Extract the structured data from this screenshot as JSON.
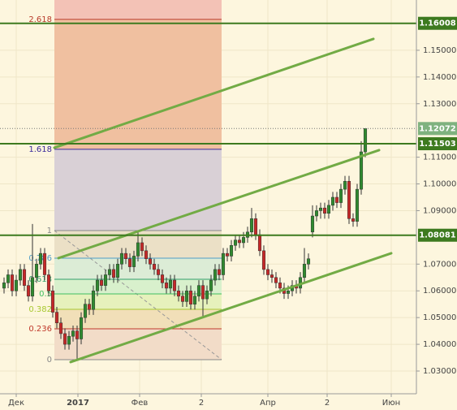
{
  "chart_data": {
    "type": "candlestick",
    "xlim": [
      0,
      102.6
    ],
    "ylim": [
      1.0215,
      1.1688
    ],
    "xticks": [
      {
        "value": 4,
        "label": "Дек"
      },
      {
        "value": 19.2,
        "label": "2017",
        "bold": true
      },
      {
        "value": 34.4,
        "label": "Фев"
      },
      {
        "value": 49.6,
        "label": "2"
      },
      {
        "value": 66,
        "label": "Апр"
      },
      {
        "value": 80.6,
        "label": "2"
      },
      {
        "value": 96.4,
        "label": "Июн"
      }
    ],
    "yticks": [
      {
        "value": 1.15,
        "label": "1.15000"
      },
      {
        "value": 1.14,
        "label": "1.14000"
      },
      {
        "value": 1.13,
        "label": "1.13000"
      },
      {
        "value": 1.11,
        "label": "1.11000"
      },
      {
        "value": 1.1,
        "label": "1.10000"
      },
      {
        "value": 1.09,
        "label": "1.09000"
      },
      {
        "value": 1.07,
        "label": "1.07000"
      },
      {
        "value": 1.06,
        "label": "1.06000"
      },
      {
        "value": 1.05,
        "label": "1.05000"
      },
      {
        "value": 1.04,
        "label": "1.04000"
      },
      {
        "value": 1.03,
        "label": "1.03000"
      }
    ],
    "grid": true,
    "up_color": "#2f8a2f",
    "down_color": "#c62828",
    "x": [
      1,
      2,
      3,
      4,
      5,
      6,
      7,
      8,
      9,
      10,
      11,
      12,
      13,
      14,
      15,
      16,
      17,
      18,
      19,
      20,
      21,
      22,
      23,
      24,
      25,
      26,
      27,
      28,
      29,
      30,
      31,
      32,
      33,
      34,
      35,
      36,
      37,
      38,
      39,
      40,
      41,
      42,
      43,
      44,
      45,
      46,
      47,
      48,
      49,
      50,
      51,
      52,
      53,
      54,
      55,
      56,
      57,
      58,
      59,
      60,
      61,
      62,
      63,
      64,
      65,
      66,
      67,
      68,
      69,
      70,
      71,
      72,
      73,
      74,
      75,
      76,
      77,
      78,
      79,
      80,
      81,
      82,
      83,
      84,
      85,
      86,
      87,
      88,
      89,
      90
    ],
    "ohlc": [
      [
        1.061,
        1.065,
        1.059,
        1.063
      ],
      [
        1.063,
        1.068,
        1.061,
        1.066
      ],
      [
        1.066,
        1.068,
        1.058,
        1.06
      ],
      [
        1.06,
        1.066,
        1.058,
        1.064
      ],
      [
        1.064,
        1.07,
        1.062,
        1.068
      ],
      [
        1.068,
        1.07,
        1.06,
        1.062
      ],
      [
        1.062,
        1.064,
        1.056,
        1.058
      ],
      [
        1.058,
        1.085,
        1.056,
        1.065
      ],
      [
        1.065,
        1.072,
        1.063,
        1.07
      ],
      [
        1.07,
        1.076,
        1.068,
        1.074
      ],
      [
        1.074,
        1.076,
        1.064,
        1.066
      ],
      [
        1.066,
        1.068,
        1.058,
        1.06
      ],
      [
        1.06,
        1.062,
        1.05,
        1.052
      ],
      [
        1.052,
        1.054,
        1.046,
        1.048
      ],
      [
        1.048,
        1.05,
        1.042,
        1.044
      ],
      [
        1.044,
        1.046,
        1.038,
        1.04
      ],
      [
        1.04,
        1.045,
        1.038,
        1.043
      ],
      [
        1.043,
        1.047,
        1.041,
        1.045
      ],
      [
        1.045,
        1.047,
        1.034,
        1.042
      ],
      [
        1.042,
        1.052,
        1.04,
        1.05
      ],
      [
        1.05,
        1.057,
        1.048,
        1.055
      ],
      [
        1.055,
        1.057,
        1.051,
        1.053
      ],
      [
        1.053,
        1.062,
        1.051,
        1.06
      ],
      [
        1.06,
        1.066,
        1.058,
        1.064
      ],
      [
        1.064,
        1.066,
        1.06,
        1.062
      ],
      [
        1.062,
        1.068,
        1.06,
        1.066
      ],
      [
        1.066,
        1.07,
        1.064,
        1.068
      ],
      [
        1.068,
        1.07,
        1.063,
        1.065
      ],
      [
        1.065,
        1.072,
        1.063,
        1.07
      ],
      [
        1.07,
        1.076,
        1.068,
        1.074
      ],
      [
        1.074,
        1.076,
        1.07,
        1.072
      ],
      [
        1.072,
        1.074,
        1.067,
        1.069
      ],
      [
        1.069,
        1.075,
        1.067,
        1.073
      ],
      [
        1.073,
        1.082,
        1.071,
        1.078
      ],
      [
        1.078,
        1.08,
        1.073,
        1.075
      ],
      [
        1.075,
        1.077,
        1.07,
        1.072
      ],
      [
        1.072,
        1.074,
        1.068,
        1.07
      ],
      [
        1.07,
        1.072,
        1.066,
        1.068
      ],
      [
        1.068,
        1.07,
        1.064,
        1.066
      ],
      [
        1.066,
        1.068,
        1.061,
        1.063
      ],
      [
        1.063,
        1.065,
        1.059,
        1.061
      ],
      [
        1.061,
        1.066,
        1.059,
        1.064
      ],
      [
        1.064,
        1.066,
        1.058,
        1.06
      ],
      [
        1.06,
        1.062,
        1.056,
        1.058
      ],
      [
        1.058,
        1.06,
        1.054,
        1.056
      ],
      [
        1.056,
        1.062,
        1.054,
        1.06
      ],
      [
        1.06,
        1.062,
        1.053,
        1.055
      ],
      [
        1.055,
        1.06,
        1.053,
        1.058
      ],
      [
        1.058,
        1.064,
        1.056,
        1.062
      ],
      [
        1.062,
        1.064,
        1.05,
        1.057
      ],
      [
        1.057,
        1.062,
        1.055,
        1.06
      ],
      [
        1.06,
        1.066,
        1.058,
        1.064
      ],
      [
        1.064,
        1.07,
        1.062,
        1.068
      ],
      [
        1.068,
        1.07,
        1.064,
        1.066
      ],
      [
        1.066,
        1.076,
        1.064,
        1.074
      ],
      [
        1.074,
        1.076,
        1.071,
        1.073
      ],
      [
        1.073,
        1.079,
        1.071,
        1.077
      ],
      [
        1.077,
        1.081,
        1.075,
        1.079
      ],
      [
        1.079,
        1.081,
        1.076,
        1.078
      ],
      [
        1.078,
        1.082,
        1.076,
        1.08
      ],
      [
        1.08,
        1.084,
        1.078,
        1.082
      ],
      [
        1.082,
        1.091,
        1.08,
        1.087
      ],
      [
        1.087,
        1.089,
        1.079,
        1.081
      ],
      [
        1.081,
        1.083,
        1.073,
        1.075
      ],
      [
        1.075,
        1.077,
        1.066,
        1.068
      ],
      [
        1.068,
        1.07,
        1.064,
        1.066
      ],
      [
        1.066,
        1.068,
        1.063,
        1.065
      ],
      [
        1.065,
        1.067,
        1.061,
        1.063
      ],
      [
        1.063,
        1.065,
        1.059,
        1.061
      ],
      [
        1.061,
        1.063,
        1.057,
        1.059
      ],
      [
        1.059,
        1.062,
        1.057,
        1.06
      ],
      [
        1.06,
        1.064,
        1.058,
        1.062
      ],
      [
        1.062,
        1.064,
        1.059,
        1.061
      ],
      [
        1.061,
        1.067,
        1.059,
        1.065
      ],
      [
        1.065,
        1.076,
        1.063,
        1.07
      ],
      [
        1.07,
        1.074,
        1.068,
        1.072
      ],
      [
        1.082,
        1.092,
        1.08,
        1.088
      ],
      [
        1.088,
        1.092,
        1.086,
        1.09
      ],
      [
        1.09,
        1.093,
        1.087,
        1.091
      ],
      [
        1.091,
        1.093,
        1.087,
        1.089
      ],
      [
        1.089,
        1.094,
        1.087,
        1.092
      ],
      [
        1.092,
        1.097,
        1.09,
        1.095
      ],
      [
        1.095,
        1.097,
        1.091,
        1.093
      ],
      [
        1.093,
        1.1,
        1.091,
        1.098
      ],
      [
        1.098,
        1.103,
        1.096,
        1.101
      ],
      [
        1.101,
        1.103,
        1.085,
        1.087
      ],
      [
        1.087,
        1.089,
        1.084,
        1.086
      ],
      [
        1.086,
        1.1,
        1.084,
        1.098
      ],
      [
        1.098,
        1.116,
        1.096,
        1.112
      ],
      [
        1.112,
        1.1207,
        1.11,
        1.1207
      ]
    ],
    "hlines": [
      {
        "value": 1.16008,
        "color": "#3d7a1f",
        "label_color": "#3d7a1f",
        "style": "solid"
      },
      {
        "value": 1.12072,
        "color": "#777777",
        "label_color": "#7fb27f",
        "style": "dotted"
      },
      {
        "value": 1.11503,
        "color": "#3d7a1f",
        "label_color": "#3d7a1f",
        "style": "solid"
      },
      {
        "value": 1.08081,
        "color": "#3d7a1f",
        "label_color": "#3d7a1f",
        "style": "solid"
      }
    ],
    "trendlines": [
      {
        "x": [
          13.4,
          92
        ],
        "y": [
          1.11355,
          1.15425
        ]
      },
      {
        "x": [
          14.4,
          93.4
        ],
        "y": [
          1.07224,
          1.11264
        ]
      },
      {
        "x": [
          17.4,
          96.4
        ],
        "y": [
          1.03335,
          1.07405
        ]
      }
    ],
    "trend_color": "#72ab45",
    "fib": {
      "x": [
        13.4,
        54.6
      ],
      "top_fill": "#f3c2b6",
      "levels": [
        {
          "label": "2.618",
          "price": 1.16154,
          "color": "#b83a2a",
          "fill": "#f0c0a0"
        },
        {
          "label": "1.618",
          "price": 1.11294,
          "color": "#3a2a9a",
          "fill": "#d9d0d6"
        },
        {
          "label": "1",
          "price": 1.08256,
          "color": "#888888",
          "fill": "#ebe0c6"
        },
        {
          "label": "0.786",
          "price": 1.07223,
          "color": "#4f9cc6",
          "fill": "#dcecd6"
        },
        {
          "label": "0.618",
          "price": 1.06434,
          "color": "#2f9e6a",
          "fill": "#d8f0cc"
        },
        {
          "label": "0.5",
          "price": 1.05887,
          "color": "#3fbf5f",
          "fill": "#e6f1bc"
        },
        {
          "label": "0.382",
          "price": 1.0531,
          "color": "#a8c830",
          "fill": "#f1dfb8"
        },
        {
          "label": "0.236",
          "price": 1.04581,
          "color": "#c0392b",
          "fill": "#f2dcc8"
        },
        {
          "label": "0",
          "price": 1.03426,
          "color": "#888888"
        }
      ]
    }
  }
}
